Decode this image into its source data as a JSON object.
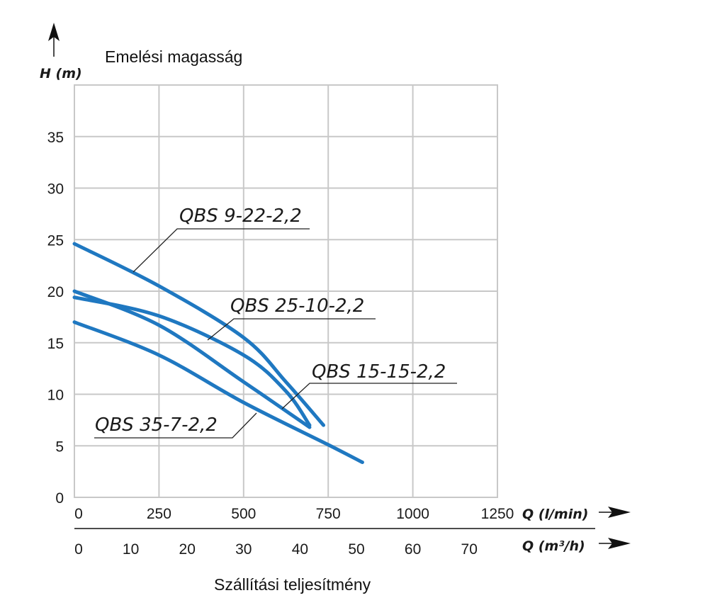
{
  "chart_data": {
    "type": "line",
    "title": "Emelési magasság",
    "xlabel": "Szállítási teljesítmény",
    "ylabel": "H (m)",
    "x_axis_label": "Q (l/min)",
    "x2_axis_label": "Q (m³/h)",
    "xlim": [
      0,
      1250
    ],
    "ylim": [
      0,
      40
    ],
    "xticks": [
      0,
      250,
      500,
      750,
      1000,
      1250
    ],
    "x2ticks": [
      0,
      10,
      20,
      30,
      40,
      50,
      60,
      70
    ],
    "yticks": [
      0,
      5,
      10,
      15,
      20,
      25,
      30,
      35
    ],
    "grid": true,
    "line_color": "#1f78c1",
    "series": [
      {
        "name": "QBS 9-22-2,2",
        "x": [
          0,
          250,
          500,
          625,
          736
        ],
        "y": [
          24.6,
          20.5,
          15.5,
          11.2,
          7.0
        ]
      },
      {
        "name": "QBS 25-10-2,2",
        "x": [
          0,
          250,
          500,
          625,
          695
        ],
        "y": [
          19.4,
          17.6,
          13.8,
          10.3,
          7.0
        ]
      },
      {
        "name": "QBS 15-15-2,2",
        "x": [
          0,
          250,
          500,
          695
        ],
        "y": [
          20.0,
          16.7,
          11.2,
          6.8
        ]
      },
      {
        "name": "QBS 35-7-2,2",
        "x": [
          0,
          250,
          500,
          750,
          851
        ],
        "y": [
          17.0,
          13.8,
          9.2,
          5.1,
          3.4
        ]
      }
    ]
  }
}
